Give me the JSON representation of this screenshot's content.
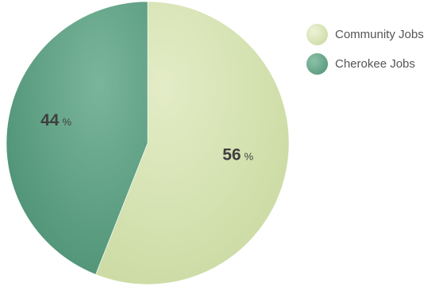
{
  "chart_data": {
    "type": "pie",
    "title": "",
    "slices": [
      {
        "label": "Community Jobs",
        "value": 56,
        "display": "56",
        "unit": "%",
        "color": "#d8e4b5"
      },
      {
        "label": "Cherokee Jobs",
        "value": 44,
        "display": "44",
        "unit": "%",
        "color": "#5fa385"
      }
    ],
    "legend_position": "top-right"
  }
}
